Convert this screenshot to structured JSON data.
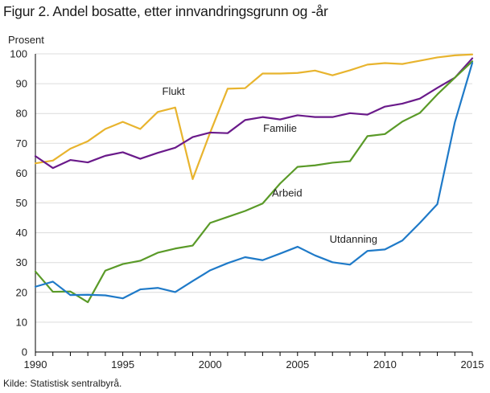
{
  "chart_data": {
    "type": "line",
    "title": "Figur 2. Andel bosatte, etter innvandringsgrunn og -år",
    "ylabel": "Prosent",
    "xlabel": "",
    "source": "Kilde: Statistisk sentralbyrå.",
    "xlim": [
      1990,
      2015
    ],
    "ylim": [
      0,
      100
    ],
    "xticks": [
      1990,
      1995,
      2000,
      2005,
      2010,
      2015
    ],
    "yticks": [
      0,
      10,
      20,
      30,
      40,
      50,
      60,
      70,
      80,
      90,
      100
    ],
    "grid": "horizontal",
    "legend": "inline labels",
    "x": [
      1990,
      1991,
      1992,
      1993,
      1994,
      1995,
      1996,
      1997,
      1998,
      1999,
      2000,
      2001,
      2002,
      2003,
      2004,
      2005,
      2006,
      2007,
      2008,
      2009,
      2010,
      2011,
      2012,
      2013,
      2014,
      2015
    ],
    "series": [
      {
        "name": "Flukt",
        "color": "#e8b42e",
        "values": [
          63.3,
          64.2,
          68.2,
          70.7,
          74.8,
          77.2,
          74.8,
          80.5,
          82.0,
          58.0,
          73.6,
          88.3,
          88.5,
          93.4,
          93.4,
          93.6,
          94.4,
          92.8,
          94.5,
          96.4,
          96.9,
          96.6,
          97.7,
          98.8,
          99.5,
          99.8
        ]
      },
      {
        "name": "Familie",
        "color": "#6a1a8a",
        "values": [
          65.7,
          61.7,
          64.4,
          63.6,
          65.8,
          67.0,
          64.8,
          66.8,
          68.5,
          72.1,
          73.6,
          73.4,
          77.8,
          78.8,
          78.0,
          79.4,
          78.8,
          78.8,
          80.1,
          79.6,
          82.3,
          83.3,
          85.0,
          88.6,
          92.0,
          98.5
        ]
      },
      {
        "name": "Arbeid",
        "color": "#5a9a28",
        "values": [
          27.0,
          20.2,
          20.3,
          16.7,
          27.3,
          29.5,
          30.6,
          33.3,
          34.7,
          35.7,
          43.3,
          45.3,
          47.3,
          49.8,
          56.5,
          62.1,
          62.6,
          63.5,
          64.0,
          72.4,
          73.1,
          77.3,
          80.2,
          86.4,
          92.0,
          97.5
        ]
      },
      {
        "name": "Utdanning",
        "color": "#1f7ac8",
        "values": [
          21.9,
          23.6,
          19.1,
          19.2,
          19.0,
          18.0,
          21.0,
          21.5,
          20.1,
          23.8,
          27.4,
          29.8,
          31.8,
          30.8,
          33.0,
          35.3,
          32.4,
          30.1,
          29.3,
          33.9,
          34.4,
          37.4,
          43.3,
          49.6,
          77.0,
          97.0
        ]
      }
    ],
    "annotations": [
      {
        "text": "Flukt",
        "series": "Flukt",
        "x": 1997.9,
        "y": 86.2
      },
      {
        "text": "Familie",
        "series": "Familie",
        "x": 2004.0,
        "y": 73.8
      },
      {
        "text": "Arbeid",
        "series": "Arbeid",
        "x": 2004.4,
        "y": 52.2
      },
      {
        "text": "Utdanning",
        "series": "Utdanning",
        "x": 2008.2,
        "y": 36.7
      }
    ]
  }
}
